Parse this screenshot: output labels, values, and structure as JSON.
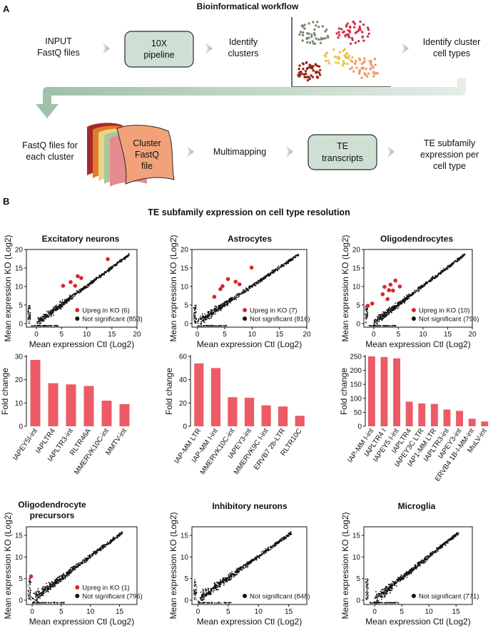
{
  "panel_a": {
    "label": "A",
    "title": "Bioinformatical workflow",
    "row1": {
      "input_line1": "INPUT",
      "input_line2": "FastQ files",
      "pipeline_line1": "10X",
      "pipeline_line2": "pipeline",
      "identify_line1": "Identify",
      "identify_line2": "clusters",
      "celltype_line1": "Identify cluster",
      "celltype_line2": "cell types"
    },
    "row2": {
      "fastq_line1": "FastQ files for",
      "fastq_line2": "each cluster",
      "cluster_line1": "Cluster",
      "cluster_line2": "FastQ",
      "cluster_line3": "file",
      "multimapping": "Multimapping",
      "te_line1": "TE",
      "te_line2": "transcripts",
      "out_line1": "TE subfamily",
      "out_line2": "expression per",
      "out_line3": "cell type"
    },
    "colors": {
      "box_fill": "#cfdfd4",
      "box_stroke": "#2b2b2b",
      "arrow": "#a9c7b3"
    }
  },
  "panel_b": {
    "label": "B",
    "title": "TE subfamily expression on cell type resolution",
    "xlabel": "Mean expression Ctl (Log2)",
    "ylabel": "Mean expression KO (Log2)",
    "fold_ylabel": "Fold change",
    "upreg_label": "Upreg in KO",
    "ns_label": "Not significant",
    "colors": {
      "upreg": "#d9262c",
      "ns": "#111111",
      "bar": "#ec5b66"
    }
  },
  "chart_data": [
    {
      "type": "scatter",
      "id": "exc",
      "title": "Excitatory neurons",
      "xlim": [
        -2,
        20
      ],
      "ylim": [
        -1,
        20
      ],
      "xticks": [
        "0",
        "5",
        "10",
        "15",
        "20"
      ],
      "yticks": [
        "0",
        "5",
        "10",
        "15",
        "20"
      ],
      "upreg_count": "(6)",
      "ns_count": "(853)",
      "upreg_points": [
        [
          5.3,
          10.2
        ],
        [
          7.7,
          10.2
        ],
        [
          8.2,
          12.8
        ],
        [
          8.9,
          12.3
        ],
        [
          14.2,
          17.4
        ],
        [
          6.8,
          11.2
        ]
      ]
    },
    {
      "type": "scatter",
      "id": "ast",
      "title": "Astrocytes",
      "xlim": [
        -1,
        20
      ],
      "ylim": [
        -1,
        20
      ],
      "xticks": [
        "0",
        "5",
        "10",
        "15",
        "20"
      ],
      "yticks": [
        "0",
        "5",
        "10",
        "15",
        "20"
      ],
      "upreg_count": "(7)",
      "ns_count": "(816)",
      "upreg_points": [
        [
          3.1,
          7.2
        ],
        [
          4.2,
          9.3
        ],
        [
          5.6,
          12.0
        ],
        [
          7.0,
          11.3
        ],
        [
          7.7,
          10.6
        ],
        [
          9.9,
          15.1
        ],
        [
          4.6,
          10.1
        ]
      ]
    },
    {
      "type": "scatter",
      "id": "oli",
      "title": "Oligodendrocytes",
      "xlim": [
        -2,
        20
      ],
      "ylim": [
        -1,
        20
      ],
      "xticks": [
        "0",
        "5",
        "10",
        "15",
        "20"
      ],
      "yticks": [
        "0",
        "5",
        "10",
        "15",
        "20"
      ],
      "upreg_count": "(10)",
      "ns_count": "(796)",
      "upreg_points": [
        [
          -1.2,
          4.8
        ],
        [
          1.8,
          7.9
        ],
        [
          2.2,
          9.9
        ],
        [
          3.4,
          10.5
        ],
        [
          3.9,
          8.9
        ],
        [
          4.4,
          11.6
        ],
        [
          5.3,
          10.0
        ],
        [
          3.1,
          9.0
        ],
        [
          -0.3,
          5.4
        ],
        [
          2.8,
          6.6
        ]
      ]
    },
    {
      "type": "bar",
      "id": "exc_fc",
      "categories": [
        "IAPEY5I-int",
        "IAPLTR4",
        "IAPLTR3-int",
        "RLTR46A",
        "MMERVK10C-int",
        "MMTV-int"
      ],
      "values": [
        28.5,
        18.5,
        18,
        17.3,
        11,
        9.5
      ],
      "ylim": [
        0,
        30
      ],
      "yticks": [
        "0",
        "10",
        "20",
        "30"
      ]
    },
    {
      "type": "bar",
      "id": "ast_fc",
      "categories": [
        "IAP-MM LTR",
        "IAP-MM I-int",
        "MMERVK10C-int",
        "IAPEY3-int",
        "MMERVK9C I-int",
        "ERVB7 2b-LTR",
        "RLTR10C"
      ],
      "values": [
        54,
        50,
        25,
        24.5,
        18,
        17,
        9
      ],
      "ylim": [
        0,
        60
      ],
      "yticks": [
        "0",
        "20",
        "40",
        "60"
      ]
    },
    {
      "type": "bar",
      "id": "oli_fc",
      "categories": [
        "IAP-MM I-int",
        "IAPLTR4 I",
        "IAPEY5 I-int",
        "IAPLTR4",
        "IAPEY3C LTR",
        "IAP1-MM LTR",
        "IAPLTR3-int",
        "IAPEY3-int",
        "ERVB4 1B-I-MM-int",
        "MuLV-int"
      ],
      "values": [
        250,
        248,
        243,
        88,
        82,
        80,
        60,
        55,
        27,
        17
      ],
      "ylim": [
        0,
        250
      ],
      "yticks": [
        "0",
        "50",
        "100",
        "150",
        "200",
        "250"
      ]
    },
    {
      "type": "scatter",
      "id": "opc",
      "title_line1": "Oligodendrocyte",
      "title_line2": "precursors",
      "xlim": [
        -1,
        18
      ],
      "ylim": [
        -1,
        17
      ],
      "xticks": [
        "0",
        "5",
        "10",
        "15"
      ],
      "yticks": [
        "0",
        "5",
        "10",
        "15"
      ],
      "upreg_count": "(1)",
      "ns_count": "(796)",
      "upreg_points": [
        [
          -0.2,
          5.5
        ]
      ]
    },
    {
      "type": "scatter",
      "id": "inh",
      "title": "Inhibitory neurons",
      "xlim": [
        -1,
        18
      ],
      "ylim": [
        -1,
        17
      ],
      "xticks": [
        "0",
        "5",
        "10",
        "15"
      ],
      "yticks": [
        "0",
        "5",
        "10",
        "15"
      ],
      "ns_count": "(848)",
      "upreg_points": []
    },
    {
      "type": "scatter",
      "id": "mic",
      "title": "Microglia",
      "xlim": [
        -2,
        18
      ],
      "ylim": [
        -1,
        17
      ],
      "xticks": [
        "0",
        "5",
        "10",
        "15"
      ],
      "yticks": [
        "0",
        "5",
        "10",
        "15"
      ],
      "ns_count": "(771)",
      "upreg_points": []
    }
  ]
}
